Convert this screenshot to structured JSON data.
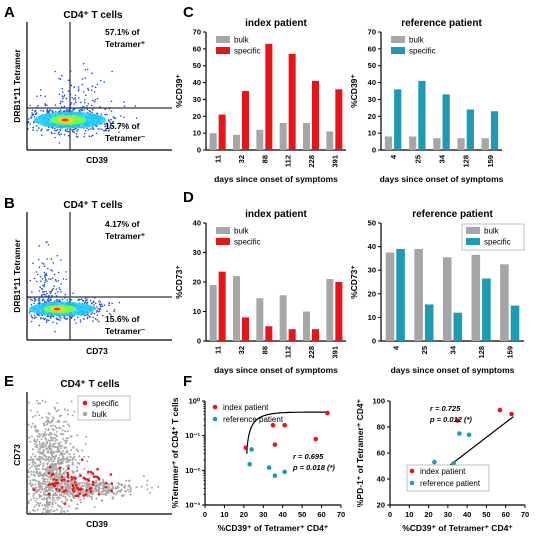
{
  "colors": {
    "bulk": "#a6a6a6",
    "specific_index": "#e8141a",
    "specific_reference": "#1e9bb3",
    "fc_dot": "#1f4bd8"
  },
  "panel_labels": {
    "a": "A",
    "b": "B",
    "c": "C",
    "d": "D",
    "e": "E",
    "f": "F"
  },
  "flow_a": {
    "title": "CD4⁺ T cells",
    "ylabel": "DRB1*11 Tetramer",
    "xlabel": "CD39",
    "q_top_line1": "57.1% of",
    "q_top_line2": "Tetramer⁺",
    "q_bot_line1": "15.7% of",
    "q_bot_line2": "Tetramer⁻"
  },
  "flow_b": {
    "title": "CD4⁺ T cells",
    "ylabel": "DRB1*11 Tetramer",
    "xlabel": "CD73",
    "q_top_line1": "4.17% of",
    "q_top_line2": "Tetramer⁺",
    "q_bot_line1": "15.6% of",
    "q_bot_line2": "Tetramer⁻"
  },
  "flow_e": {
    "title": "CD4⁺ T cells",
    "ylabel": "CD73",
    "xlabel": "CD39",
    "legend": [
      "specific",
      "bulk"
    ]
  },
  "chart_data": [
    {
      "id": "C-index",
      "type": "bar",
      "title": "index patient",
      "xlabel": "days since onset of symptoms",
      "ylabel": "%CD39⁺",
      "categories": [
        "11",
        "32",
        "88",
        "112",
        "228",
        "391"
      ],
      "ylim": [
        0,
        70
      ],
      "yticks": [
        "0",
        "10",
        "20",
        "30",
        "40",
        "50",
        "60",
        "70"
      ],
      "legend_position": "top-left",
      "series": [
        {
          "name": "bulk",
          "values": [
            10,
            9,
            12,
            16,
            16,
            11
          ]
        },
        {
          "name": "specific",
          "values": [
            21,
            35,
            63,
            57,
            41,
            36
          ]
        }
      ]
    },
    {
      "id": "C-reference",
      "type": "bar",
      "title": "reference patient",
      "xlabel": "days since onset of symptoms",
      "ylabel": "%CD39⁺",
      "categories": [
        "4",
        "25",
        "34",
        "128",
        "159"
      ],
      "ylim": [
        0,
        70
      ],
      "yticks": [
        "0",
        "10",
        "20",
        "30",
        "40",
        "50",
        "60",
        "70"
      ],
      "legend_position": "top-left",
      "series": [
        {
          "name": "bulk",
          "values": [
            8,
            8,
            7,
            7,
            7
          ]
        },
        {
          "name": "specific",
          "values": [
            36,
            41,
            33,
            24,
            23
          ]
        }
      ]
    },
    {
      "id": "D-index",
      "type": "bar",
      "title": "index patient",
      "xlabel": "days since onset of symptoms",
      "ylabel": "%CD73⁺",
      "categories": [
        "11",
        "32",
        "88",
        "112",
        "228",
        "391"
      ],
      "ylim": [
        0,
        40
      ],
      "yticks": [
        "0",
        "10",
        "20",
        "30",
        "40"
      ],
      "legend_position": "top-left",
      "series": [
        {
          "name": "bulk",
          "values": [
            19,
            22,
            14.5,
            15.5,
            10,
            21
          ]
        },
        {
          "name": "specific",
          "values": [
            23.5,
            8,
            5,
            4,
            4,
            20
          ]
        }
      ]
    },
    {
      "id": "D-reference",
      "type": "bar",
      "title": "reference patient",
      "xlabel": "days since onset of symptoms",
      "ylabel": "%CD73⁺",
      "categories": [
        "4",
        "25",
        "34",
        "128",
        "159"
      ],
      "ylim": [
        0,
        50
      ],
      "yticks": [
        "0",
        "10",
        "20",
        "30",
        "40",
        "50"
      ],
      "legend_position": "top-right",
      "series": [
        {
          "name": "bulk",
          "values": [
            37.5,
            39,
            35.5,
            36.5,
            32.5
          ]
        },
        {
          "name": "specific",
          "values": [
            39,
            15.5,
            12,
            26.5,
            15
          ]
        }
      ]
    },
    {
      "id": "F-left",
      "type": "scatter",
      "scale_y": "log",
      "xlabel": "%CD39⁺ of Tetramer⁺ CD4⁺",
      "ylabel": "%Tetramer⁺ of CD4⁺ T cells",
      "xlim": [
        0,
        70
      ],
      "xticks": [
        "0",
        "10",
        "20",
        "30",
        "40",
        "50",
        "60",
        "70"
      ],
      "ylim": [
        0.001,
        1
      ],
      "yticks": [
        "10⁻³",
        "10⁻²",
        "10⁻¹",
        "10⁰"
      ],
      "legend_position": "top-left",
      "stat_r": "r = 0.695",
      "stat_p": "p = 0.018 (*)",
      "series": [
        {
          "name": "index patient",
          "points": [
            [
              21,
              0.045
            ],
            [
              35,
              0.2
            ],
            [
              36,
              0.055
            ],
            [
              41,
              0.2
            ],
            [
              57,
              0.08
            ],
            [
              63,
              0.45
            ]
          ]
        },
        {
          "name": "reference patient",
          "points": [
            [
              23,
              0.015
            ],
            [
              24,
              0.04
            ],
            [
              33,
              0.012
            ],
            [
              36,
              0.007
            ],
            [
              41,
              0.009
            ]
          ]
        }
      ]
    },
    {
      "id": "F-right",
      "type": "scatter",
      "xlabel": "%CD39⁺ of Tetramer⁺ CD4⁺",
      "ylabel": "%PD-1⁺ of Tetramer⁺ CD4⁺",
      "xlim": [
        0,
        70
      ],
      "xticks": [
        "0",
        "10",
        "20",
        "30",
        "40",
        "50",
        "60",
        "70"
      ],
      "ylim": [
        20,
        100
      ],
      "yticks": [
        "20",
        "40",
        "60",
        "80",
        "100"
      ],
      "legend_position": "bottom-right",
      "stat_r": "r = 0.725",
      "stat_p": "p = 0.012 (*)",
      "series": [
        {
          "name": "index patient",
          "points": [
            [
              21,
              36
            ],
            [
              35,
              85
            ],
            [
              36,
              38
            ],
            [
              41,
              46
            ],
            [
              57,
              93
            ],
            [
              63,
              90
            ]
          ]
        },
        {
          "name": "reference patient",
          "points": [
            [
              23,
              53
            ],
            [
              24,
              44
            ],
            [
              33,
              52
            ],
            [
              36,
              75
            ],
            [
              41,
              74
            ]
          ]
        }
      ]
    }
  ]
}
